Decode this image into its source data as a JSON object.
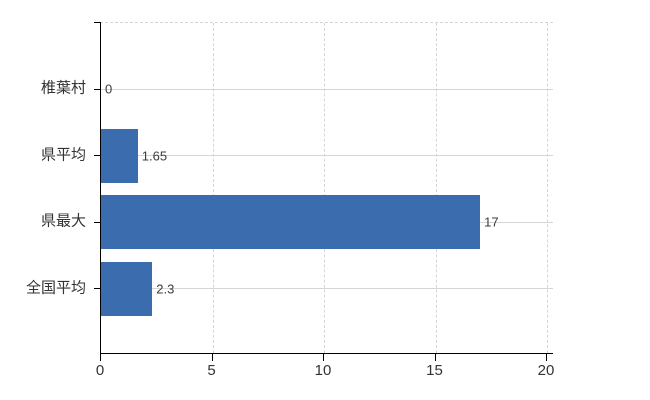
{
  "chart_data": {
    "type": "bar",
    "orientation": "horizontal",
    "title": "",
    "categories": [
      "椎葉村",
      "県平均",
      "県最大",
      "全国平均"
    ],
    "values": [
      0,
      1.65,
      17,
      2.3
    ],
    "value_labels": [
      "0",
      "1.65",
      "17",
      "2.3"
    ],
    "xlim": [
      0,
      20
    ],
    "xticks": [
      0,
      5,
      10,
      15,
      20
    ],
    "xtick_labels": [
      "0",
      "5",
      "10",
      "15",
      "20"
    ],
    "grid": true,
    "legend_position": "none",
    "colors": {
      "bar": "#3b6dae",
      "grid": "#d5d5d2",
      "axis": "#000000",
      "tick_text": "#333333",
      "value_text": "#3c3c3c",
      "background": "#ffffff"
    }
  }
}
